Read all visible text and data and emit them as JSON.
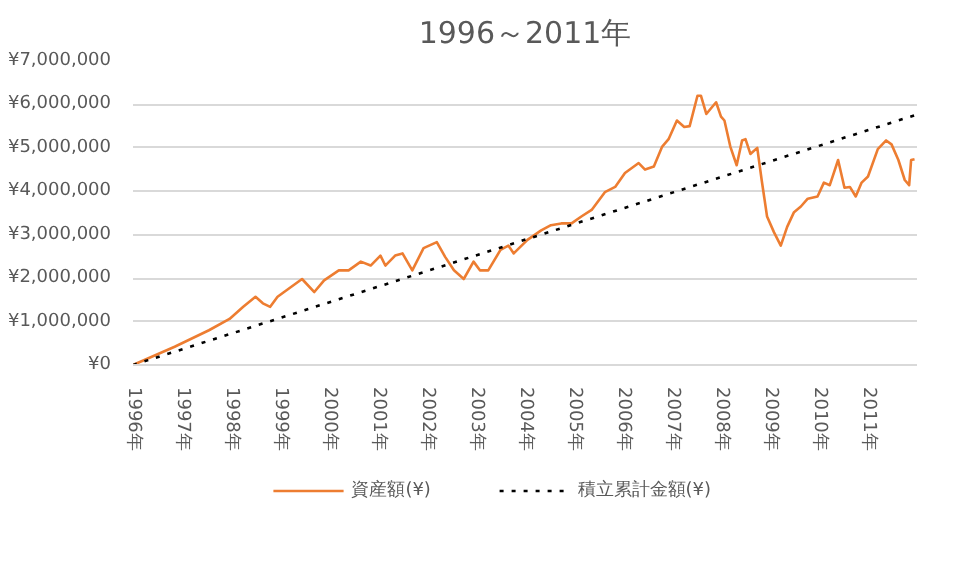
{
  "chart_data": {
    "type": "line",
    "title": "1996～2011年",
    "xlim": [
      1996,
      2012
    ],
    "xticks": [
      {
        "value": 1996,
        "label": "1996年"
      },
      {
        "value": 1997,
        "label": "1997年"
      },
      {
        "value": 1998,
        "label": "1998年"
      },
      {
        "value": 1999,
        "label": "1999年"
      },
      {
        "value": 2000,
        "label": "2000年"
      },
      {
        "value": 2001,
        "label": "2001年"
      },
      {
        "value": 2002,
        "label": "2002年"
      },
      {
        "value": 2003,
        "label": "2003年"
      },
      {
        "value": 2004,
        "label": "2004年"
      },
      {
        "value": 2005,
        "label": "2005年"
      },
      {
        "value": 2006,
        "label": "2006年"
      },
      {
        "value": 2007,
        "label": "2007年"
      },
      {
        "value": 2008,
        "label": "2008年"
      },
      {
        "value": 2009,
        "label": "2009年"
      },
      {
        "value": 2010,
        "label": "2010年"
      },
      {
        "value": 2011,
        "label": "2011年"
      }
    ],
    "ylim": [
      0,
      7000000
    ],
    "yticks": [
      {
        "value": 0,
        "label": "¥0"
      },
      {
        "value": 1000000,
        "label": "¥1,000,000"
      },
      {
        "value": 2000000,
        "label": "¥2,000,000"
      },
      {
        "value": 3000000,
        "label": "¥3,000,000"
      },
      {
        "value": 4000000,
        "label": "¥4,000,000"
      },
      {
        "value": 5000000,
        "label": "¥5,000,000"
      },
      {
        "value": 6000000,
        "label": "¥6,000,000"
      },
      {
        "value": 7000000,
        "label": "¥7,000,000"
      }
    ],
    "grid": "y",
    "legend": "bottom",
    "series": [
      {
        "name": "資産額(¥)",
        "color": "#ed7d31",
        "line_style": "solid",
        "x": [
          1996.0,
          1996.85,
          1997.55,
          1997.97,
          1998.25,
          1998.5,
          1998.65,
          1998.8,
          1998.95,
          1999.45,
          1999.7,
          1999.9,
          2000.2,
          2000.4,
          2000.65,
          2000.85,
          2001.05,
          2001.15,
          2001.35,
          2001.5,
          2001.7,
          2001.93,
          2002.2,
          2002.37,
          2002.55,
          2002.75,
          2002.95,
          2003.08,
          2003.25,
          2003.5,
          2003.66,
          2003.77,
          2004.05,
          2004.33,
          2004.53,
          2004.74,
          2004.95,
          2005.15,
          2005.36,
          2005.63,
          2005.84,
          2006.04,
          2006.32,
          2006.45,
          2006.63,
          2006.8,
          2006.93,
          2007.1,
          2007.25,
          2007.36,
          2007.52,
          2007.59,
          2007.7,
          2007.84,
          2007.9,
          2008.0,
          2008.07,
          2008.19,
          2008.32,
          2008.43,
          2008.5,
          2008.6,
          2008.74,
          2008.83,
          2008.94,
          2009.08,
          2009.22,
          2009.35,
          2009.49,
          2009.63,
          2009.77,
          2009.97,
          2010.1,
          2010.22,
          2010.39,
          2010.52,
          2010.63,
          2010.75,
          2010.87,
          2011.0,
          2011.2,
          2011.37,
          2011.48,
          2011.62,
          2011.75,
          2011.84,
          2011.88,
          2011.95
        ],
        "values": [
          0,
          420000,
          800000,
          1060000,
          1340000,
          1570000,
          1420000,
          1340000,
          1570000,
          1980000,
          1680000,
          1950000,
          2180000,
          2180000,
          2380000,
          2290000,
          2520000,
          2290000,
          2520000,
          2570000,
          2180000,
          2690000,
          2830000,
          2490000,
          2180000,
          1980000,
          2380000,
          2180000,
          2180000,
          2650000,
          2750000,
          2570000,
          2880000,
          3100000,
          3220000,
          3260000,
          3260000,
          3420000,
          3570000,
          3980000,
          4100000,
          4420000,
          4650000,
          4500000,
          4570000,
          5030000,
          5200000,
          5630000,
          5480000,
          5500000,
          6200000,
          6200000,
          5780000,
          5970000,
          6050000,
          5720000,
          5630000,
          5030000,
          4600000,
          5170000,
          5200000,
          4860000,
          5000000,
          4260000,
          3420000,
          3060000,
          2750000,
          3180000,
          3520000,
          3650000,
          3830000,
          3880000,
          4200000,
          4140000,
          4720000,
          4080000,
          4100000,
          3880000,
          4200000,
          4340000,
          4970000,
          5170000,
          5080000,
          4720000,
          4260000,
          4140000,
          4720000,
          4740000
        ]
      },
      {
        "name": "積立累計金額(¥)",
        "color": "#000000",
        "line_style": "dotted",
        "x": [
          1996.0,
          2011.95
        ],
        "values": [
          0,
          5750000
        ]
      }
    ]
  }
}
